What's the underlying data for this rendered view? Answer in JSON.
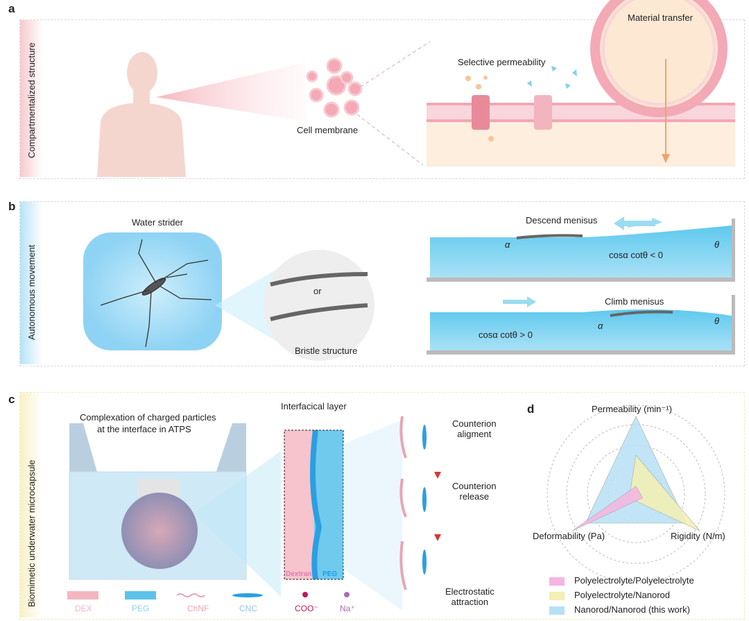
{
  "panels": {
    "a": {
      "label": "a",
      "side_title": "Compartmentalized structure",
      "cell_membrane": "Cell membrane",
      "selective_permeability": "Selective permeability",
      "material_transfer": "Material transfer"
    },
    "b": {
      "label": "b",
      "side_title": "Autonomous movement",
      "water_strider": "Water strider",
      "or": "or",
      "bristle_structure": "Bristle structure",
      "descend": "Descend menisus",
      "climb": "Climb menisus",
      "eq_top": "cosα cotθ < 0",
      "eq_bottom": "cosα cotθ > 0",
      "alpha": "α",
      "theta": "θ"
    },
    "c": {
      "label": "c",
      "side_title": "Biomimetic underwater microcapsule",
      "complexation": "Complexation of charged particles",
      "complexation2": "at the interface in ATPS",
      "interfacial_layer": "Interfacical layer",
      "dextran": "Dextran",
      "peg_layer": "PEG",
      "steps": [
        {
          "line1": "Counterion",
          "line2": "aligment"
        },
        {
          "line1": "Counterion",
          "line2": "release"
        },
        {
          "line1": "Electrostatic",
          "line2": "attraction"
        }
      ],
      "legend": [
        {
          "label": "DEX",
          "color": "#f4b6c0"
        },
        {
          "label": "PEG",
          "color": "#5cc2ea"
        },
        {
          "label": "ChNF",
          "color": "#e9a5b3"
        },
        {
          "label": "CNC",
          "color": "#2b9fe0"
        },
        {
          "label": "COO⁻",
          "color": "#c2185b"
        },
        {
          "label": "Na⁺",
          "color": "#b06ab3"
        }
      ]
    },
    "d": {
      "label": "d",
      "axes": [
        "Permeability (min⁻¹)",
        "Deformability (Pa)",
        "Rigidity (N/m)"
      ],
      "series": [
        {
          "name": "Polyelectrolyte/Polyelectrolyte",
          "color": "#f6b4e2",
          "values": [
            0.1,
            0.95,
            0.1
          ]
        },
        {
          "name": "Polyelectrolyte/Nanorod",
          "color": "#f3f0b2",
          "values": [
            0.5,
            0.1,
            0.95
          ]
        },
        {
          "name": "Nanorod/Nanorod (this work)",
          "color": "#b6e1f4",
          "values": [
            1.0,
            0.75,
            0.75
          ]
        }
      ]
    }
  }
}
